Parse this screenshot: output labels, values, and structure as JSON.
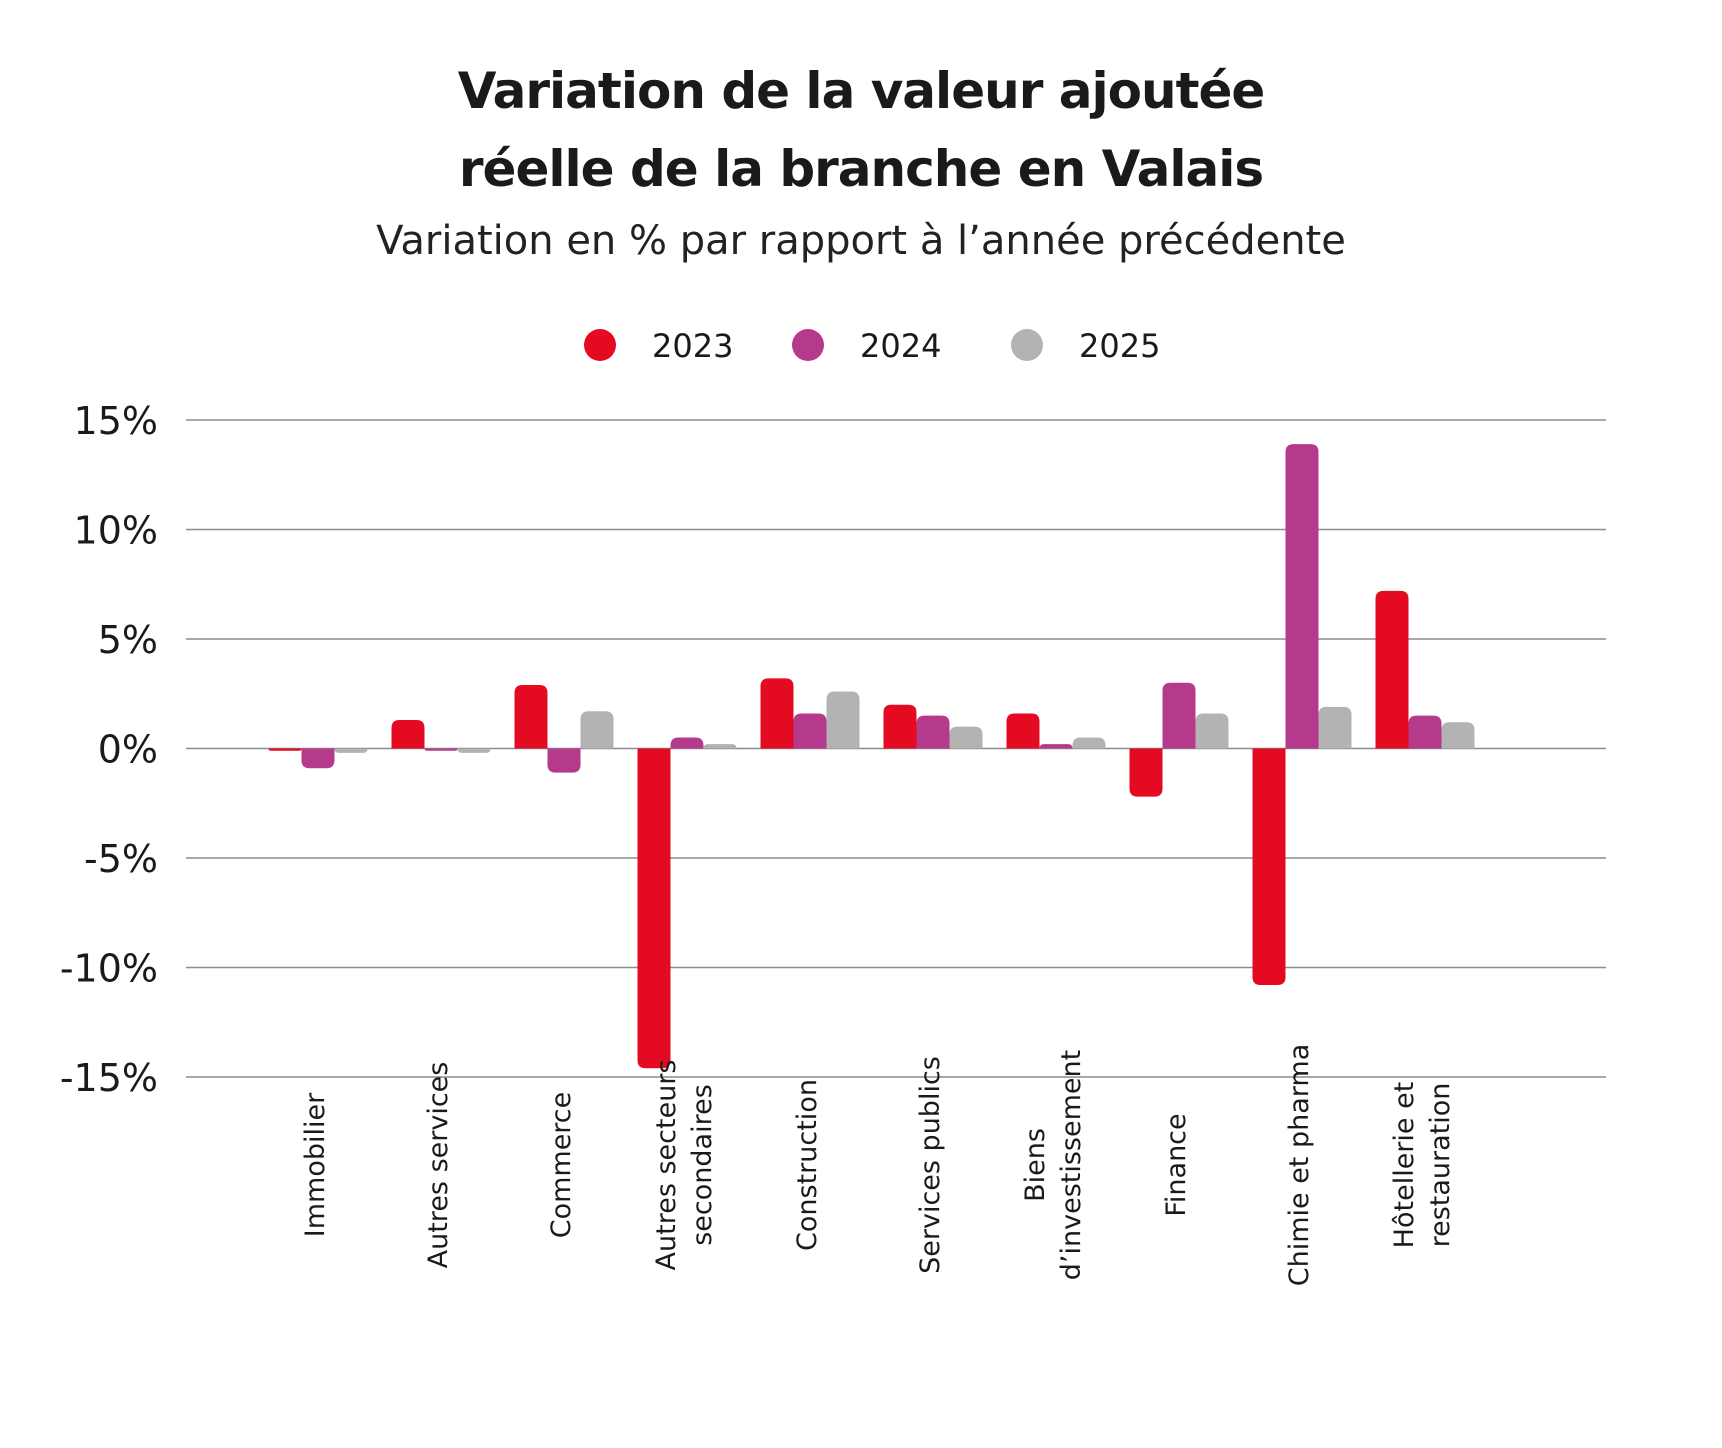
{
  "title_line1": "Variation de la valeur ajoutée",
  "title_line2": "réelle de la branche en Valais",
  "subtitle": "Variation en % par rapport à l’année précédente",
  "colors": {
    "2023": "#e30a22",
    "2024": "#b63a8b",
    "2025": "#b3b3b3",
    "grid": "#8c8c8c"
  },
  "chart_data": {
    "type": "bar",
    "title": "Variation de la valeur ajoutée réelle de la branche en Valais",
    "subtitle": "Variation en % par rapport à l’année précédente",
    "xlabel": "",
    "ylabel": "",
    "ylim": [
      -15,
      15
    ],
    "yticks": [
      15,
      10,
      5,
      0,
      -5,
      -10,
      -15
    ],
    "ytick_labels": [
      "15%",
      "10%",
      "5%",
      "0%",
      "-5%",
      "-10%",
      "-15%"
    ],
    "grid": true,
    "legend_position": "top-center",
    "categories": [
      [
        "Immobilier"
      ],
      [
        "Autres services"
      ],
      [
        "Commerce"
      ],
      [
        "Autres secteurs",
        "secondaires"
      ],
      [
        "Construction"
      ],
      [
        "Services publics"
      ],
      [
        "Biens",
        "d’investissement"
      ],
      [
        "Finance"
      ],
      [
        "Chimie et pharma"
      ],
      [
        "Hôtellerie et",
        "restauration"
      ]
    ],
    "series": [
      {
        "name": "2023",
        "values": [
          -0.1,
          1.3,
          2.9,
          -14.6,
          3.2,
          2.0,
          1.6,
          -2.2,
          -10.8,
          7.2
        ]
      },
      {
        "name": "2024",
        "values": [
          -0.9,
          -0.1,
          -1.1,
          0.5,
          1.6,
          1.5,
          0.2,
          3.0,
          13.9,
          1.5
        ]
      },
      {
        "name": "2025",
        "values": [
          -0.2,
          -0.2,
          1.7,
          0.2,
          2.6,
          1.0,
          0.5,
          1.6,
          1.9,
          1.2
        ]
      }
    ]
  }
}
